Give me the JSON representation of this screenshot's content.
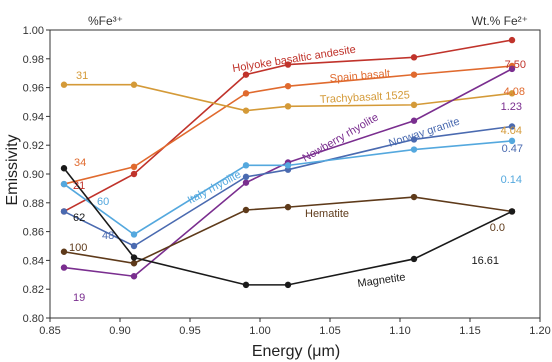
{
  "chart_data": {
    "type": "line",
    "xlabel": "Energy (μm)",
    "ylabel": "Emissivity",
    "xlim": [
      0.85,
      1.2
    ],
    "ylim": [
      0.8,
      1.0
    ],
    "xticks": [
      "0.85",
      "0.90",
      "0.95",
      "1.00",
      "1.05",
      "1.10",
      "1.15",
      "1.20"
    ],
    "yticks": [
      "0.80",
      "0.82",
      "0.84",
      "0.86",
      "0.88",
      "0.90",
      "0.92",
      "0.94",
      "0.96",
      "0.98",
      "1.00"
    ],
    "left_header": "%Fe³⁺",
    "right_header": "Wt.% Fe²⁺",
    "grid": false,
    "series": [
      {
        "name": "Holyoke basaltic andesite",
        "color": "#c0332b",
        "left_value": "21",
        "right_value": "7.50",
        "x": [
          0.86,
          0.91,
          0.99,
          1.02,
          1.11,
          1.18
        ],
        "y": [
          0.874,
          0.9,
          0.969,
          0.976,
          0.981,
          0.993
        ]
      },
      {
        "name": "Spain basalt",
        "color": "#e06a2e",
        "left_value": "34",
        "right_value": "4.08",
        "x": [
          0.86,
          0.91,
          0.99,
          1.02,
          1.11,
          1.18
        ],
        "y": [
          0.893,
          0.905,
          0.956,
          0.961,
          0.969,
          0.975
        ]
      },
      {
        "name": "Trachybasalt 1525",
        "color": "#d49a38",
        "left_value": "31",
        "right_value": "4.04",
        "x": [
          0.86,
          0.91,
          0.99,
          1.02,
          1.11,
          1.18
        ],
        "y": [
          0.962,
          0.962,
          0.944,
          0.947,
          0.948,
          0.956
        ]
      },
      {
        "name": "Newberry rhyolite",
        "color": "#7a2e8f",
        "left_value": "19",
        "right_value": "1.23",
        "x": [
          0.86,
          0.91,
          0.99,
          1.02,
          1.11,
          1.18
        ],
        "y": [
          0.835,
          0.829,
          0.894,
          0.908,
          0.937,
          0.973
        ]
      },
      {
        "name": "Norway granite",
        "color": "#4a6ab0",
        "left_value": "48",
        "right_value": "0.47",
        "x": [
          0.86,
          0.91,
          0.99,
          1.02,
          1.11,
          1.18
        ],
        "y": [
          0.874,
          0.85,
          0.898,
          0.903,
          0.924,
          0.933
        ]
      },
      {
        "name": "Italy rhyolite",
        "color": "#54a8de",
        "left_value": "60",
        "right_value": "0.14",
        "x": [
          0.86,
          0.91,
          0.99,
          1.02,
          1.11,
          1.18
        ],
        "y": [
          0.893,
          0.858,
          0.906,
          0.906,
          0.917,
          0.923
        ]
      },
      {
        "name": "Hematite",
        "color": "#5e3a1a",
        "left_value": "100",
        "right_value": "0.0",
        "x": [
          0.86,
          0.91,
          0.99,
          1.02,
          1.11,
          1.18
        ],
        "y": [
          0.846,
          0.838,
          0.875,
          0.877,
          0.884,
          0.874
        ]
      },
      {
        "name": "Magnetite",
        "color": "#1a1a1a",
        "left_value": "62",
        "right_value": "16.61",
        "x": [
          0.86,
          0.91,
          0.99,
          1.02,
          1.11,
          1.18
        ],
        "y": [
          0.904,
          0.842,
          0.823,
          0.823,
          0.841,
          0.874
        ]
      }
    ]
  }
}
